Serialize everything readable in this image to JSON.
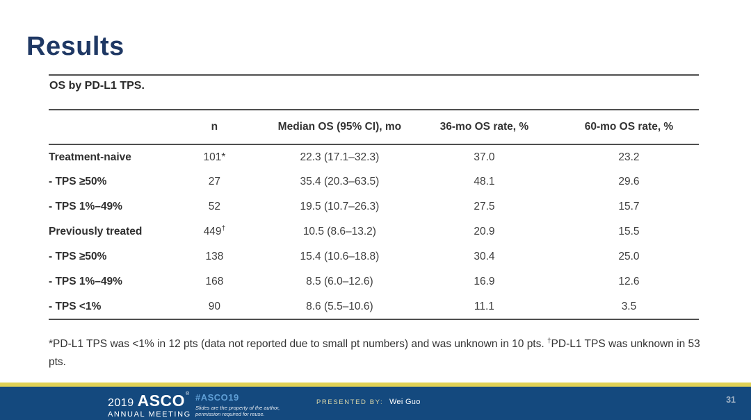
{
  "slide": {
    "title": "Results",
    "caption": "OS by PD-L1 TPS.",
    "table": {
      "headers": {
        "label": "",
        "n": "n",
        "median": "Median OS (95% CI), mo",
        "rate36": "36-mo OS rate, %",
        "rate60": "60-mo OS rate, %"
      },
      "rows": [
        {
          "label": "Treatment-naive",
          "n": "101*",
          "n_sup": "",
          "median": "22.3 (17.1–32.3)",
          "rate36": "37.0",
          "rate60": "23.2"
        },
        {
          "label": "- TPS ≥50%",
          "n": "27",
          "n_sup": "",
          "median": "35.4 (20.3–63.5)",
          "rate36": "48.1",
          "rate60": "29.6"
        },
        {
          "label": "- TPS 1%–49%",
          "n": "52",
          "n_sup": "",
          "median": "19.5 (10.7–26.3)",
          "rate36": "27.5",
          "rate60": "15.7"
        },
        {
          "label": "Previously treated",
          "n": "449",
          "n_sup": "†",
          "median": "10.5 (8.6–13.2)",
          "rate36": "20.9",
          "rate60": "15.5"
        },
        {
          "label": "- TPS ≥50%",
          "n": "138",
          "n_sup": "",
          "median": "15.4 (10.6–18.8)",
          "rate36": "30.4",
          "rate60": "25.0"
        },
        {
          "label": "- TPS 1%–49%",
          "n": "168",
          "n_sup": "",
          "median": "8.5 (6.0–12.6)",
          "rate36": "16.9",
          "rate60": "12.6"
        },
        {
          "label": "- TPS <1%",
          "n": "90",
          "n_sup": "",
          "median": "8.6 (5.5–10.6)",
          "rate36": "11.1",
          "rate60": "3.5"
        }
      ]
    },
    "footnote": {
      "part1": "*PD-L1 TPS was <1% in 12 pts (data not reported due to small pt numbers) and was unknown in 10 pts. ",
      "dagger": "†",
      "part2": "PD-L1 TPS was unknown in 53 pts."
    }
  },
  "footer": {
    "logo": {
      "year": "2019",
      "name": "ASCO",
      "mark": "®",
      "subtitle": "ANNUAL MEETING"
    },
    "hashtag": "#ASCO19",
    "disclaimer_line1": "Slides are the property of the author,",
    "disclaimer_line2": "permission required for reuse.",
    "presented_by_label": "PRESENTED BY:",
    "presenter": "Wei Guo",
    "page_number": "31"
  },
  "colors": {
    "title_navy": "#1f3864",
    "footer_navy": "#14497e",
    "gold_strip": "#e0d155",
    "hashtag_blue": "#5f9fd6",
    "table_rule": "#4f4f4f",
    "body_text": "#3d3d3d"
  }
}
